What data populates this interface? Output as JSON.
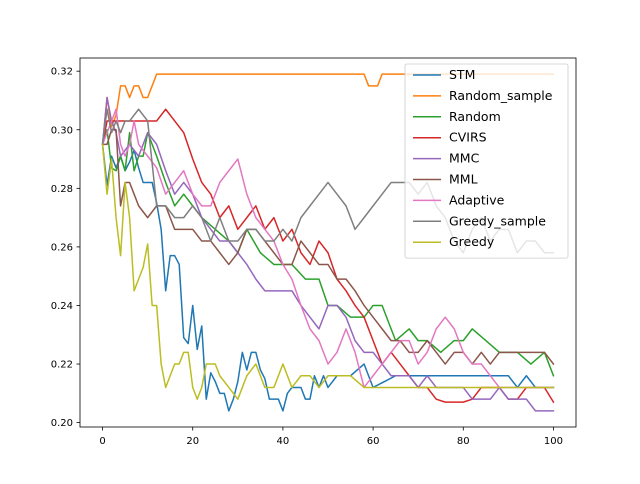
{
  "chart_data": {
    "type": "line",
    "title": "",
    "xlabel": "",
    "ylabel": "",
    "xlim": [
      -5,
      105
    ],
    "ylim": [
      0.1985,
      0.3245
    ],
    "x_ticks": [
      0,
      20,
      40,
      60,
      80,
      100
    ],
    "y_ticks": [
      0.2,
      0.22,
      0.24,
      0.26,
      0.28,
      0.3,
      0.32
    ],
    "x_tick_labels": [
      "0",
      "20",
      "40",
      "60",
      "80",
      "100"
    ],
    "y_tick_labels": [
      "0.20",
      "0.22",
      "0.24",
      "0.26",
      "0.28",
      "0.30",
      "0.32"
    ],
    "grid": false,
    "legend_position": "top-right",
    "series": [
      {
        "name": "STM",
        "color": "#1f77b4",
        "x": [
          0,
          1,
          2,
          3,
          4,
          5,
          6,
          7,
          8,
          9,
          10,
          11,
          12,
          13,
          14,
          15,
          16,
          17,
          18,
          19,
          20,
          21,
          22,
          23,
          24,
          25,
          26,
          27,
          28,
          29,
          30,
          31,
          32,
          33,
          34,
          35,
          36,
          37,
          38,
          39,
          40,
          41,
          42,
          43,
          44,
          45,
          46,
          47,
          48,
          49,
          50,
          52,
          55,
          58,
          60,
          65,
          70,
          75,
          80,
          85,
          90,
          92,
          94,
          96,
          98,
          100
        ],
        "y": [
          0.295,
          0.281,
          0.291,
          0.287,
          0.291,
          0.286,
          0.289,
          0.293,
          0.287,
          0.282,
          0.282,
          0.282,
          0.275,
          0.266,
          0.245,
          0.257,
          0.257,
          0.254,
          0.229,
          0.227,
          0.24,
          0.225,
          0.233,
          0.208,
          0.217,
          0.214,
          0.21,
          0.21,
          0.204,
          0.208,
          0.214,
          0.224,
          0.218,
          0.224,
          0.224,
          0.218,
          0.215,
          0.208,
          0.208,
          0.208,
          0.204,
          0.21,
          0.212,
          0.212,
          0.212,
          0.208,
          0.208,
          0.216,
          0.212,
          0.216,
          0.212,
          0.216,
          0.216,
          0.22,
          0.212,
          0.216,
          0.216,
          0.216,
          0.216,
          0.216,
          0.216,
          0.212,
          0.216,
          0.212,
          0.212,
          0.212
        ]
      },
      {
        "name": "Random_sample",
        "color": "#ff7f0e",
        "x": [
          0,
          1,
          2,
          3,
          4,
          5,
          6,
          7,
          8,
          9,
          10,
          11,
          12,
          20,
          40,
          55,
          58,
          59,
          60,
          61,
          62,
          63,
          100
        ],
        "y": [
          0.295,
          0.311,
          0.301,
          0.305,
          0.315,
          0.315,
          0.311,
          0.315,
          0.315,
          0.311,
          0.311,
          0.315,
          0.319,
          0.319,
          0.319,
          0.319,
          0.319,
          0.315,
          0.315,
          0.315,
          0.319,
          0.319,
          0.319
        ]
      },
      {
        "name": "Random",
        "color": "#2ca02c",
        "x": [
          0,
          1,
          2,
          3,
          4,
          5,
          6,
          7,
          8,
          9,
          10,
          12,
          14,
          16,
          18,
          20,
          22,
          25,
          28,
          30,
          32,
          35,
          38,
          40,
          42,
          45,
          48,
          50,
          52,
          55,
          58,
          60,
          62,
          65,
          68,
          70,
          72,
          75,
          78,
          80,
          82,
          85,
          88,
          90,
          92,
          95,
          98,
          100
        ],
        "y": [
          0.295,
          0.3,
          0.287,
          0.286,
          0.291,
          0.286,
          0.299,
          0.286,
          0.291,
          0.291,
          0.299,
          0.291,
          0.282,
          0.274,
          0.278,
          0.274,
          0.27,
          0.266,
          0.262,
          0.258,
          0.266,
          0.258,
          0.254,
          0.254,
          0.254,
          0.249,
          0.249,
          0.24,
          0.24,
          0.236,
          0.236,
          0.24,
          0.24,
          0.228,
          0.232,
          0.228,
          0.228,
          0.224,
          0.228,
          0.228,
          0.232,
          0.228,
          0.224,
          0.224,
          0.224,
          0.22,
          0.224,
          0.216
        ]
      },
      {
        "name": "CVIRS",
        "color": "#d62728",
        "x": [
          0,
          1,
          2,
          4,
          6,
          8,
          10,
          12,
          14,
          16,
          18,
          20,
          22,
          24,
          26,
          28,
          30,
          32,
          34,
          36,
          38,
          40,
          42,
          44,
          46,
          48,
          50,
          52,
          54,
          56,
          58,
          60,
          62,
          64,
          66,
          68,
          70,
          72,
          74,
          76,
          78,
          80,
          82,
          84,
          86,
          88,
          90,
          92,
          94,
          96,
          98,
          100
        ],
        "y": [
          0.295,
          0.303,
          0.303,
          0.303,
          0.303,
          0.303,
          0.303,
          0.303,
          0.307,
          0.303,
          0.299,
          0.29,
          0.282,
          0.278,
          0.27,
          0.274,
          0.266,
          0.27,
          0.274,
          0.266,
          0.27,
          0.262,
          0.266,
          0.258,
          0.254,
          0.262,
          0.258,
          0.249,
          0.245,
          0.24,
          0.236,
          0.228,
          0.22,
          0.224,
          0.22,
          0.216,
          0.212,
          0.212,
          0.208,
          0.207,
          0.207,
          0.207,
          0.208,
          0.212,
          0.212,
          0.212,
          0.208,
          0.208,
          0.212,
          0.212,
          0.212,
          0.207
        ]
      },
      {
        "name": "MMC",
        "color": "#9467bd",
        "x": [
          0,
          1,
          2,
          3,
          4,
          6,
          8,
          10,
          12,
          14,
          16,
          18,
          20,
          22,
          24,
          26,
          28,
          30,
          32,
          34,
          36,
          38,
          40,
          42,
          44,
          46,
          48,
          50,
          52,
          54,
          56,
          58,
          60,
          62,
          64,
          66,
          68,
          70,
          72,
          74,
          76,
          78,
          80,
          82,
          84,
          86,
          88,
          90,
          92,
          94,
          96,
          98,
          100
        ],
        "y": [
          0.295,
          0.311,
          0.303,
          0.299,
          0.291,
          0.295,
          0.291,
          0.299,
          0.295,
          0.286,
          0.278,
          0.282,
          0.278,
          0.27,
          0.266,
          0.262,
          0.262,
          0.258,
          0.254,
          0.249,
          0.245,
          0.245,
          0.245,
          0.245,
          0.24,
          0.236,
          0.232,
          0.24,
          0.24,
          0.236,
          0.228,
          0.224,
          0.224,
          0.22,
          0.216,
          0.216,
          0.216,
          0.212,
          0.216,
          0.212,
          0.212,
          0.212,
          0.212,
          0.208,
          0.208,
          0.208,
          0.212,
          0.208,
          0.208,
          0.208,
          0.204,
          0.204,
          0.204
        ]
      },
      {
        "name": "MML",
        "color": "#8c564b",
        "x": [
          0,
          1,
          2,
          3,
          4,
          5,
          6,
          7,
          8,
          10,
          12,
          14,
          16,
          18,
          20,
          22,
          24,
          26,
          28,
          30,
          32,
          34,
          36,
          38,
          40,
          42,
          44,
          46,
          48,
          50,
          52,
          54,
          56,
          58,
          60,
          62,
          64,
          66,
          68,
          70,
          72,
          74,
          76,
          78,
          80,
          82,
          84,
          86,
          88,
          90,
          92,
          94,
          96,
          98,
          100
        ],
        "y": [
          0.295,
          0.295,
          0.3,
          0.3,
          0.274,
          0.282,
          0.282,
          0.278,
          0.274,
          0.27,
          0.274,
          0.274,
          0.266,
          0.266,
          0.266,
          0.262,
          0.262,
          0.258,
          0.254,
          0.258,
          0.266,
          0.266,
          0.262,
          0.258,
          0.254,
          0.254,
          0.262,
          0.258,
          0.254,
          0.254,
          0.249,
          0.249,
          0.245,
          0.24,
          0.236,
          0.232,
          0.228,
          0.228,
          0.224,
          0.224,
          0.228,
          0.224,
          0.22,
          0.224,
          0.224,
          0.22,
          0.224,
          0.22,
          0.224,
          0.224,
          0.224,
          0.224,
          0.224,
          0.224,
          0.22
        ]
      },
      {
        "name": "Adaptive",
        "color": "#e377c2",
        "x": [
          0,
          1,
          2,
          3,
          4,
          5,
          6,
          7,
          8,
          10,
          12,
          14,
          16,
          18,
          20,
          22,
          24,
          26,
          28,
          30,
          32,
          34,
          36,
          38,
          40,
          42,
          44,
          46,
          48,
          50,
          52,
          54,
          56,
          58,
          60,
          62,
          64,
          66,
          68,
          70,
          72,
          74,
          76,
          78,
          80,
          82,
          84,
          86,
          88,
          90,
          92,
          94,
          96,
          98,
          100
        ],
        "y": [
          0.295,
          0.299,
          0.303,
          0.307,
          0.295,
          0.291,
          0.295,
          0.303,
          0.295,
          0.291,
          0.287,
          0.278,
          0.282,
          0.286,
          0.278,
          0.274,
          0.274,
          0.282,
          0.286,
          0.29,
          0.278,
          0.27,
          0.266,
          0.262,
          0.254,
          0.249,
          0.24,
          0.232,
          0.228,
          0.22,
          0.224,
          0.232,
          0.224,
          0.212,
          0.216,
          0.22,
          0.224,
          0.228,
          0.228,
          0.22,
          0.224,
          0.232,
          0.236,
          0.232,
          0.224,
          0.22,
          0.22,
          0.216,
          0.212,
          0.212,
          0.212,
          0.212,
          0.212,
          0.212,
          0.212
        ]
      },
      {
        "name": "Greedy_sample",
        "color": "#7f7f7f",
        "x": [
          0,
          1,
          2,
          3,
          4,
          5,
          6,
          8,
          10,
          12,
          14,
          16,
          18,
          20,
          22,
          24,
          26,
          28,
          30,
          32,
          34,
          36,
          38,
          40,
          42,
          44,
          46,
          48,
          50,
          52,
          54,
          56,
          58,
          60,
          62,
          64,
          66,
          68,
          70,
          72,
          74,
          76,
          78,
          80,
          82,
          84,
          86,
          88,
          90,
          92,
          94,
          96,
          98,
          100
        ],
        "y": [
          0.295,
          0.307,
          0.299,
          0.303,
          0.299,
          0.303,
          0.303,
          0.307,
          0.303,
          0.274,
          0.274,
          0.27,
          0.27,
          0.274,
          0.27,
          0.262,
          0.27,
          0.262,
          0.262,
          0.266,
          0.266,
          0.262,
          0.262,
          0.266,
          0.262,
          0.27,
          0.274,
          0.278,
          0.282,
          0.278,
          0.274,
          0.266,
          0.27,
          0.274,
          0.278,
          0.282,
          0.282,
          0.282,
          0.278,
          0.282,
          0.274,
          0.27,
          0.262,
          0.258,
          0.266,
          0.27,
          0.262,
          0.266,
          0.266,
          0.258,
          0.262,
          0.262,
          0.258,
          0.258
        ]
      },
      {
        "name": "Greedy",
        "color": "#bcbd22",
        "x": [
          0,
          1,
          2,
          3,
          4,
          5,
          6,
          7,
          8,
          9,
          10,
          11,
          12,
          13,
          14,
          15,
          16,
          17,
          18,
          19,
          20,
          21,
          22,
          23,
          24,
          25,
          26,
          28,
          30,
          32,
          34,
          36,
          38,
          40,
          42,
          44,
          46,
          48,
          50,
          52,
          55,
          58,
          60,
          65,
          70,
          75,
          80,
          85,
          90,
          95,
          100
        ],
        "y": [
          0.295,
          0.278,
          0.29,
          0.27,
          0.257,
          0.282,
          0.27,
          0.245,
          0.249,
          0.253,
          0.261,
          0.24,
          0.24,
          0.22,
          0.212,
          0.216,
          0.22,
          0.22,
          0.224,
          0.224,
          0.212,
          0.208,
          0.212,
          0.22,
          0.22,
          0.22,
          0.216,
          0.212,
          0.208,
          0.216,
          0.22,
          0.212,
          0.212,
          0.22,
          0.212,
          0.216,
          0.216,
          0.212,
          0.216,
          0.216,
          0.216,
          0.212,
          0.212,
          0.212,
          0.212,
          0.212,
          0.212,
          0.212,
          0.212,
          0.212,
          0.212
        ]
      }
    ]
  }
}
